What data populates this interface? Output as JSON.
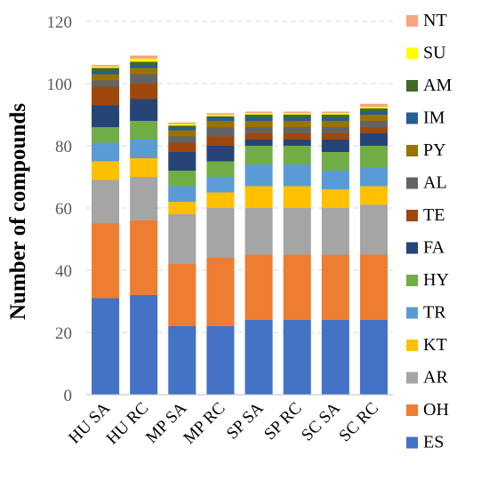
{
  "chart_data": {
    "type": "bar",
    "stacked": true,
    "categories": [
      "HU SA",
      "HU RC",
      "MP SA",
      "MP RC",
      "SP SA",
      "SP RC",
      "SC SA",
      "SC RC"
    ],
    "ylabel": "Number of compounds",
    "ylim": [
      0,
      120
    ],
    "yticks": [
      0,
      20,
      40,
      60,
      80,
      100,
      120
    ],
    "grid": true,
    "legend_position": "right",
    "series": [
      {
        "name": "ES",
        "color": "#4472C4",
        "values": [
          31,
          32,
          22,
          22,
          24,
          24,
          24,
          24
        ]
      },
      {
        "name": "OH",
        "color": "#ED7D31",
        "values": [
          24,
          24,
          20,
          22,
          21,
          21,
          21,
          21
        ]
      },
      {
        "name": "AR",
        "color": "#A5A5A5",
        "values": [
          14,
          14,
          16,
          16,
          15,
          15,
          15,
          16
        ]
      },
      {
        "name": "KT",
        "color": "#FFC000",
        "values": [
          6,
          6,
          4,
          5,
          7,
          7,
          6,
          6
        ]
      },
      {
        "name": "TR",
        "color": "#5B9BD5",
        "values": [
          6,
          6,
          5,
          5,
          7,
          7,
          6,
          6
        ]
      },
      {
        "name": "HY",
        "color": "#70AD47",
        "values": [
          5,
          6,
          5,
          5,
          6,
          6,
          6,
          7
        ]
      },
      {
        "name": "FA",
        "color": "#264478",
        "values": [
          7,
          7,
          6,
          5,
          2,
          2,
          4,
          4
        ]
      },
      {
        "name": "TE",
        "color": "#9E480E",
        "values": [
          6,
          5,
          3,
          3,
          2,
          2,
          2,
          2
        ]
      },
      {
        "name": "AL",
        "color": "#636363",
        "values": [
          2,
          3,
          2,
          3,
          2,
          2,
          2,
          2
        ]
      },
      {
        "name": "PY",
        "color": "#997300",
        "values": [
          2,
          2,
          2,
          2,
          2,
          2,
          2,
          2
        ]
      },
      {
        "name": "IM",
        "color": "#255E91",
        "values": [
          1,
          1,
          1,
          1,
          1,
          1,
          1,
          1
        ]
      },
      {
        "name": "AM",
        "color": "#43682B",
        "values": [
          1,
          1,
          0.5,
          0.5,
          1,
          1,
          1,
          1
        ]
      },
      {
        "name": "SU",
        "color": "#FFFF00",
        "values": [
          0.5,
          1,
          0.5,
          0.5,
          0.5,
          0.5,
          0.5,
          0.5
        ]
      },
      {
        "name": "NT",
        "color": "#F4A582",
        "values": [
          0.5,
          1,
          0.5,
          0.5,
          0.5,
          0.5,
          0.5,
          1
        ]
      }
    ]
  }
}
